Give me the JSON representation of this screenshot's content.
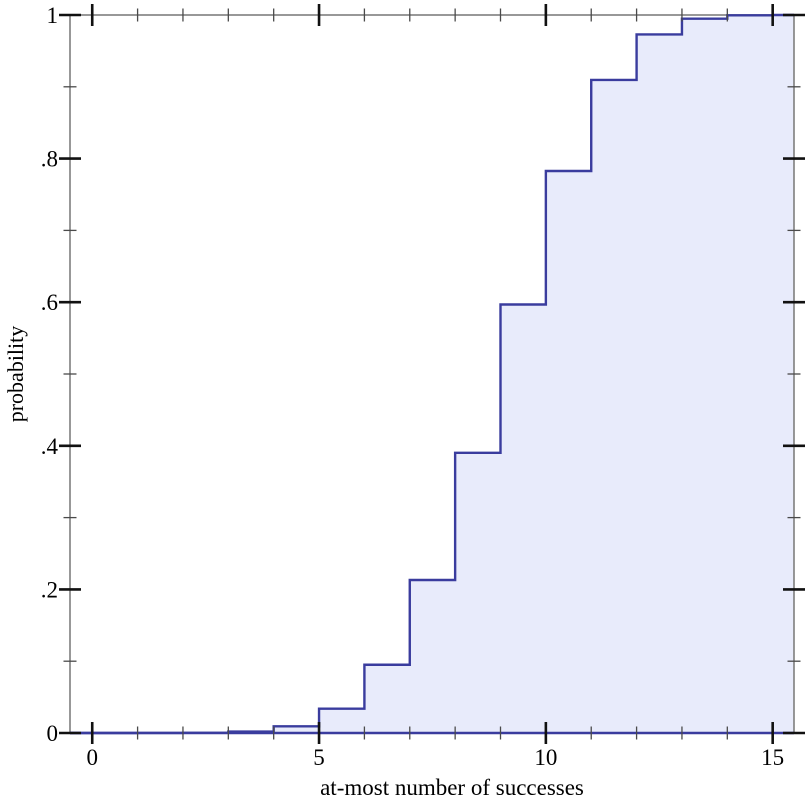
{
  "chart_data": {
    "type": "area",
    "subtype": "step-cdf",
    "title": "",
    "xlabel": "at-most number of successes",
    "ylabel": "probability",
    "x": [
      0,
      1,
      2,
      3,
      4,
      5,
      6,
      7,
      8,
      9,
      10,
      11,
      12,
      13,
      14,
      15
    ],
    "cdf": [
      1e-06,
      2.5e-05,
      0.000279,
      0.001928,
      0.009348,
      0.033834,
      0.09505,
      0.213106,
      0.39019,
      0.596788,
      0.782726,
      0.909502,
      0.97289,
      0.994832,
      0.999534,
      1.0
    ],
    "xlim": [
      -0.49,
      15.47
    ],
    "ylim": [
      0,
      1
    ],
    "grid": false,
    "legend": "none",
    "x_ticks": {
      "major_values": [
        0,
        5,
        10,
        15
      ],
      "major_labels": [
        "0",
        "5",
        "10",
        "15"
      ],
      "minor_values": [
        1,
        2,
        3,
        4,
        6,
        7,
        8,
        9,
        11,
        12,
        13,
        14
      ]
    },
    "y_ticks": {
      "major_values": [
        0,
        0.2,
        0.4,
        0.6,
        0.8,
        1
      ],
      "major_labels": [
        "0",
        ".2",
        ".4",
        ".6",
        ".8",
        "1"
      ],
      "minor_values": [
        0.1,
        0.3,
        0.5,
        0.7,
        0.9
      ]
    },
    "colors": {
      "line": "#3A3C9E",
      "fill": "#E8EBFB",
      "frame": "#7E7E7E",
      "tick_major": "#111111",
      "tick_minor": "#4A4A4A",
      "text": "#000000",
      "background": "#FFFFFF"
    }
  }
}
